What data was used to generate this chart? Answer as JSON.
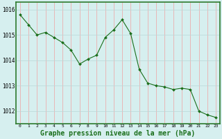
{
  "hours": [
    0,
    1,
    2,
    3,
    4,
    5,
    6,
    7,
    8,
    9,
    10,
    11,
    12,
    13,
    14,
    15,
    16,
    17,
    18,
    19,
    20,
    21,
    22,
    23
  ],
  "pressure": [
    1015.8,
    1015.4,
    1015.0,
    1015.1,
    1014.9,
    1014.7,
    1014.4,
    1013.85,
    1014.05,
    1014.2,
    1014.9,
    1015.2,
    1015.6,
    1015.05,
    1013.65,
    1013.1,
    1013.0,
    1012.95,
    1012.85,
    1012.9,
    1012.85,
    1012.0,
    1011.85,
    1011.75
  ],
  "line_color": "#1a6e1a",
  "marker": "D",
  "marker_size": 2.0,
  "bg_color": "#d6efef",
  "vgrid_color": "#f0a0a0",
  "hgrid_color": "#b8d8d8",
  "border_color": "#2d7a2d",
  "xlabel": "Graphe pression niveau de la mer (hPa)",
  "xlabel_fontsize": 7,
  "yticks": [
    1012,
    1013,
    1014,
    1015,
    1016
  ],
  "xticks": [
    0,
    1,
    2,
    3,
    4,
    5,
    6,
    7,
    8,
    9,
    10,
    11,
    12,
    13,
    14,
    15,
    16,
    17,
    18,
    19,
    20,
    21,
    22,
    23
  ],
  "ylim": [
    1011.5,
    1016.3
  ],
  "xlim": [
    -0.5,
    23.5
  ],
  "figsize": [
    3.2,
    2.0
  ],
  "dpi": 100
}
